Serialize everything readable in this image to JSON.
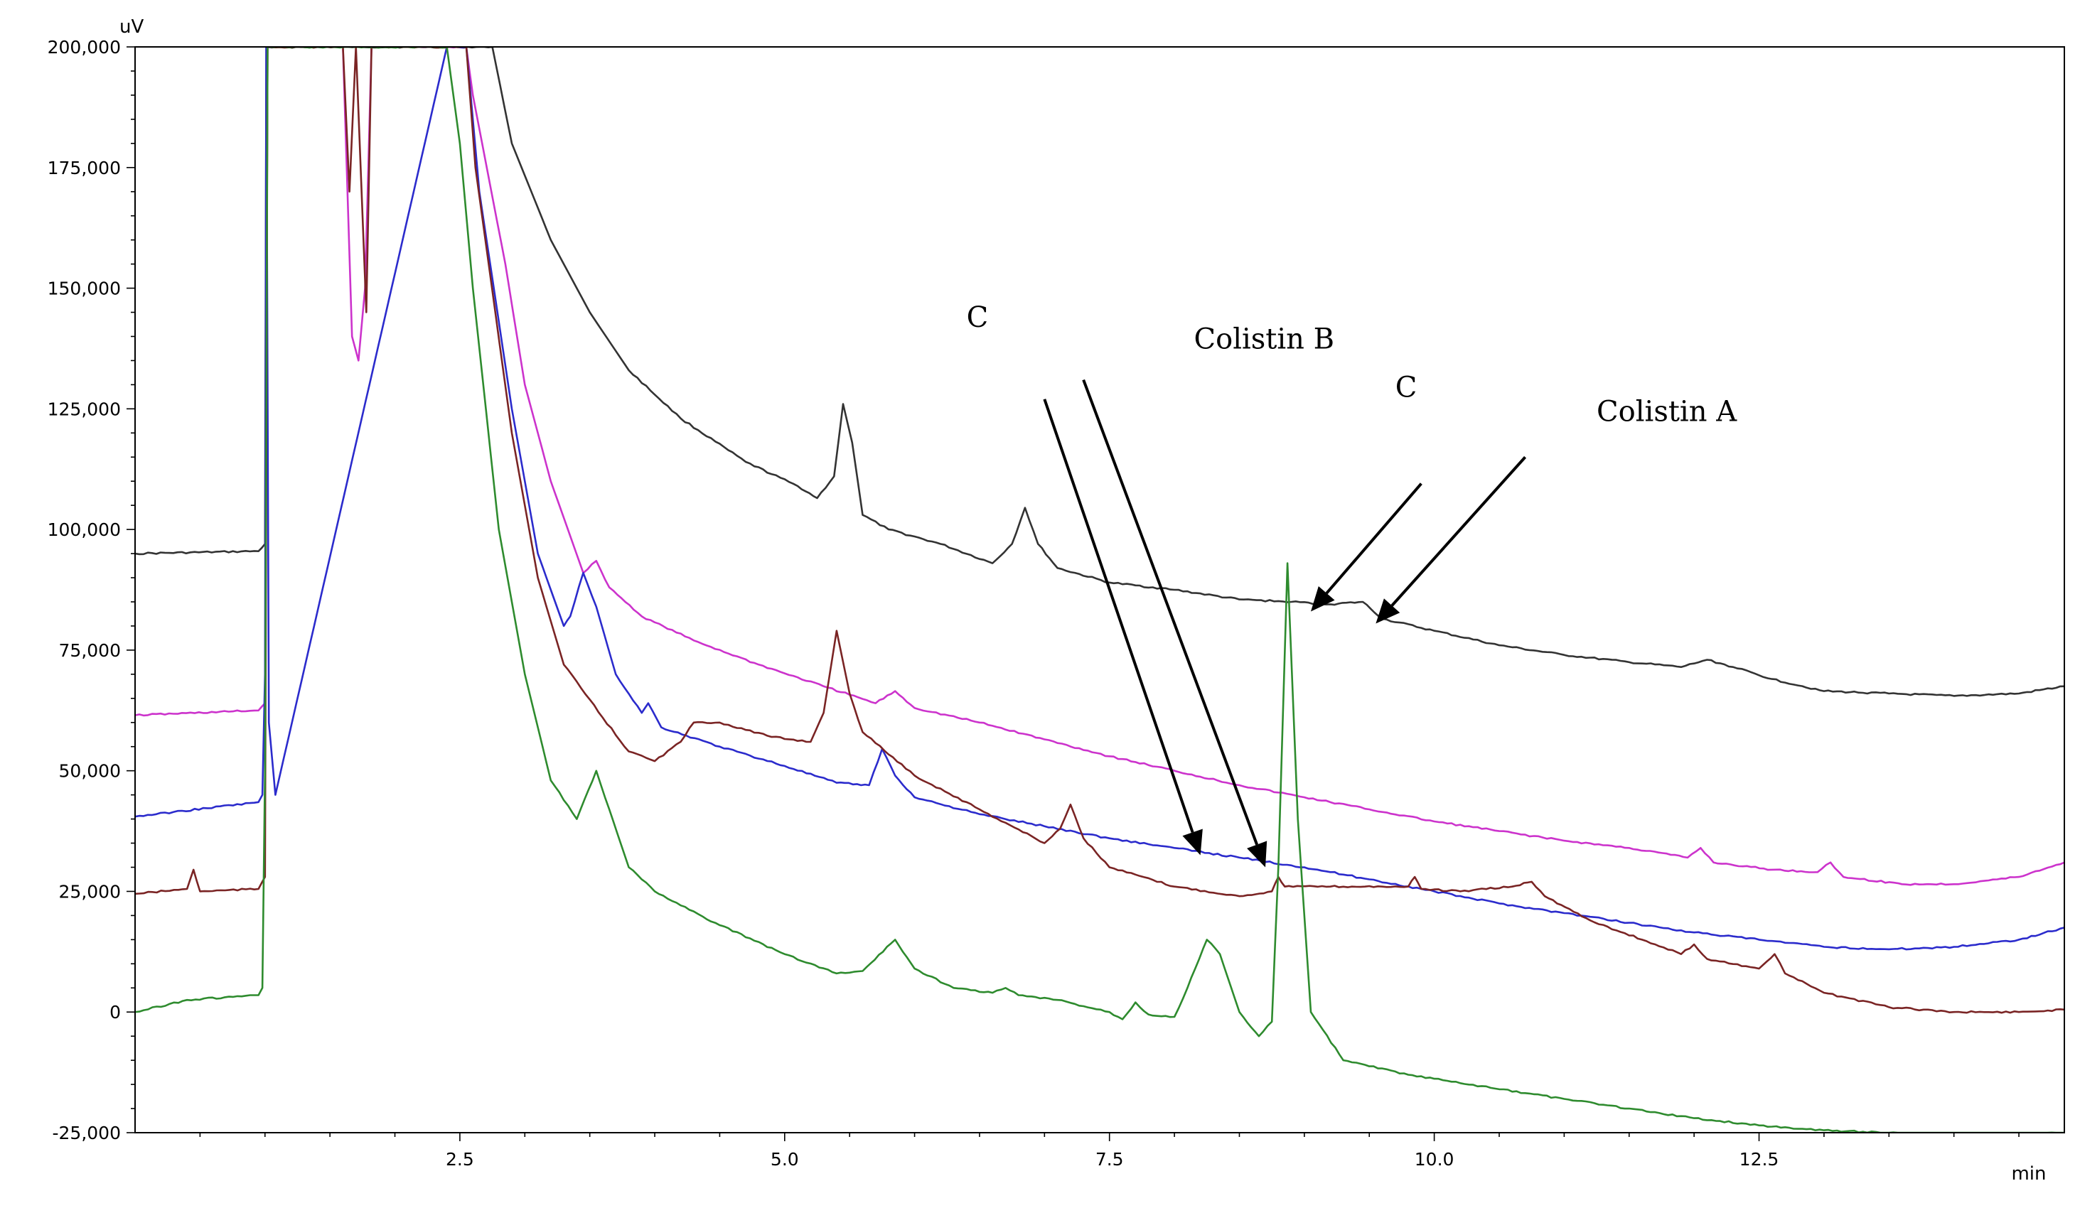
{
  "chart_data": {
    "type": "line",
    "x_unit": "min",
    "y_unit": "uV",
    "xlim": [
      0,
      14.85
    ],
    "ylim": [
      -25000,
      200000
    ],
    "x_ticks": [
      "2.5",
      "5.0",
      "7.5",
      "10.0",
      "12.5"
    ],
    "x_tick_values": [
      2.5,
      5.0,
      7.5,
      10.0,
      12.5
    ],
    "y_ticks": [
      "200,000",
      "175,000",
      "150,000",
      "125,000",
      "100,000",
      "75,000",
      "50,000",
      "25,000",
      "0",
      "-25,000"
    ],
    "y_tick_values": [
      200000,
      175000,
      150000,
      125000,
      100000,
      75000,
      50000,
      25000,
      0,
      -25000
    ],
    "grid": false,
    "legend": "none",
    "series": [
      {
        "color": "#333333",
        "points": [
          [
            0,
            95000
          ],
          [
            0.95,
            95500
          ],
          [
            1.0,
            97000
          ],
          [
            1.01,
            200000
          ],
          [
            2.5,
            200000
          ],
          [
            2.75,
            200000
          ],
          [
            2.9,
            180000
          ],
          [
            3.2,
            160000
          ],
          [
            3.5,
            145000
          ],
          [
            3.8,
            133000
          ],
          [
            4.2,
            123000
          ],
          [
            4.7,
            114000
          ],
          [
            5.1,
            109000
          ],
          [
            5.25,
            106500
          ],
          [
            5.38,
            111000
          ],
          [
            5.45,
            126000
          ],
          [
            5.52,
            118000
          ],
          [
            5.6,
            103000
          ],
          [
            5.8,
            100000
          ],
          [
            6.2,
            97000
          ],
          [
            6.6,
            93000
          ],
          [
            6.75,
            97000
          ],
          [
            6.85,
            104500
          ],
          [
            6.95,
            97000
          ],
          [
            7.1,
            92000
          ],
          [
            7.5,
            89000
          ],
          [
            8.0,
            87500
          ],
          [
            8.5,
            85500
          ],
          [
            8.9,
            85000
          ],
          [
            9.2,
            84500
          ],
          [
            9.45,
            85000
          ],
          [
            9.6,
            81500
          ],
          [
            10.0,
            79000
          ],
          [
            10.5,
            76000
          ],
          [
            11.0,
            74000
          ],
          [
            11.5,
            72500
          ],
          [
            11.9,
            71500
          ],
          [
            12.1,
            73000
          ],
          [
            12.3,
            71500
          ],
          [
            12.6,
            69000
          ],
          [
            13.0,
            66500
          ],
          [
            13.5,
            66000
          ],
          [
            14.0,
            65500
          ],
          [
            14.5,
            66000
          ],
          [
            14.85,
            67500
          ]
        ]
      },
      {
        "color": "#cc33cc",
        "points": [
          [
            0,
            61500
          ],
          [
            0.95,
            62500
          ],
          [
            1.0,
            64000
          ],
          [
            1.02,
            200000
          ],
          [
            1.6,
            200000
          ],
          [
            1.67,
            140000
          ],
          [
            1.72,
            135000
          ],
          [
            1.77,
            150000
          ],
          [
            1.82,
            200000
          ],
          [
            2.55,
            200000
          ],
          [
            2.6,
            190000
          ],
          [
            2.85,
            155000
          ],
          [
            3.0,
            130000
          ],
          [
            3.2,
            110000
          ],
          [
            3.45,
            91000
          ],
          [
            3.55,
            93500
          ],
          [
            3.65,
            88000
          ],
          [
            3.9,
            82000
          ],
          [
            4.3,
            77000
          ],
          [
            4.8,
            72000
          ],
          [
            5.3,
            67500
          ],
          [
            5.7,
            64000
          ],
          [
            5.85,
            66500
          ],
          [
            6.0,
            63000
          ],
          [
            6.5,
            60000
          ],
          [
            7.0,
            56500
          ],
          [
            7.5,
            53000
          ],
          [
            8.0,
            50000
          ],
          [
            8.5,
            47000
          ],
          [
            9.0,
            44500
          ],
          [
            9.5,
            42000
          ],
          [
            10.0,
            39500
          ],
          [
            10.5,
            37500
          ],
          [
            11.0,
            35500
          ],
          [
            11.5,
            34000
          ],
          [
            11.95,
            32000
          ],
          [
            12.05,
            34000
          ],
          [
            12.15,
            31000
          ],
          [
            12.6,
            29500
          ],
          [
            12.95,
            29000
          ],
          [
            13.05,
            31000
          ],
          [
            13.15,
            28000
          ],
          [
            13.6,
            26500
          ],
          [
            14.0,
            26500
          ],
          [
            14.5,
            28000
          ],
          [
            14.85,
            31000
          ]
        ]
      },
      {
        "color": "#2b2bcc",
        "points": [
          [
            0,
            40500
          ],
          [
            0.95,
            43500
          ],
          [
            0.98,
            45000
          ],
          [
            1.0,
            70000
          ],
          [
            1.01,
            200000
          ],
          [
            1.03,
            60000
          ],
          [
            1.08,
            45000
          ],
          [
            2.4,
            200000
          ],
          [
            2.55,
            200000
          ],
          [
            2.65,
            170000
          ],
          [
            2.9,
            125000
          ],
          [
            3.1,
            95000
          ],
          [
            3.3,
            80000
          ],
          [
            3.35,
            82000
          ],
          [
            3.45,
            91000
          ],
          [
            3.55,
            84000
          ],
          [
            3.7,
            70000
          ],
          [
            3.9,
            62000
          ],
          [
            3.95,
            64000
          ],
          [
            4.05,
            59000
          ],
          [
            4.5,
            55000
          ],
          [
            5.0,
            51000
          ],
          [
            5.4,
            47500
          ],
          [
            5.65,
            47000
          ],
          [
            5.75,
            54500
          ],
          [
            5.85,
            49000
          ],
          [
            6.0,
            44500
          ],
          [
            6.5,
            41000
          ],
          [
            7.0,
            38500
          ],
          [
            7.5,
            36000
          ],
          [
            8.0,
            34000
          ],
          [
            8.5,
            32000
          ],
          [
            9.0,
            30000
          ],
          [
            9.5,
            27500
          ],
          [
            10.0,
            25000
          ],
          [
            10.5,
            22500
          ],
          [
            11.0,
            20500
          ],
          [
            11.5,
            18500
          ],
          [
            12.0,
            16500
          ],
          [
            12.5,
            15000
          ],
          [
            13.0,
            13500
          ],
          [
            13.5,
            13000
          ],
          [
            14.0,
            13500
          ],
          [
            14.5,
            15000
          ],
          [
            14.85,
            17500
          ]
        ]
      },
      {
        "color": "#7a2424",
        "points": [
          [
            0,
            24500
          ],
          [
            0.4,
            25500
          ],
          [
            0.45,
            29500
          ],
          [
            0.5,
            25000
          ],
          [
            0.95,
            25500
          ],
          [
            1.0,
            28000
          ],
          [
            1.02,
            200000
          ],
          [
            1.6,
            200000
          ],
          [
            1.65,
            170000
          ],
          [
            1.7,
            200000
          ],
          [
            1.78,
            145000
          ],
          [
            1.82,
            200000
          ],
          [
            2.55,
            200000
          ],
          [
            2.62,
            175000
          ],
          [
            2.9,
            120000
          ],
          [
            3.1,
            90000
          ],
          [
            3.3,
            72000
          ],
          [
            3.6,
            61000
          ],
          [
            3.8,
            54000
          ],
          [
            4.0,
            52000
          ],
          [
            4.2,
            56000
          ],
          [
            4.3,
            60000
          ],
          [
            4.5,
            60000
          ],
          [
            4.9,
            57000
          ],
          [
            5.2,
            56000
          ],
          [
            5.3,
            62000
          ],
          [
            5.4,
            79000
          ],
          [
            5.5,
            66000
          ],
          [
            5.6,
            58000
          ],
          [
            6.0,
            49000
          ],
          [
            6.5,
            42000
          ],
          [
            7.0,
            35000
          ],
          [
            7.12,
            38000
          ],
          [
            7.2,
            43000
          ],
          [
            7.3,
            36000
          ],
          [
            7.5,
            30000
          ],
          [
            8.0,
            26000
          ],
          [
            8.5,
            24000
          ],
          [
            8.75,
            25000
          ],
          [
            8.8,
            28000
          ],
          [
            8.85,
            26000
          ],
          [
            9.2,
            26000
          ],
          [
            9.6,
            26000
          ],
          [
            9.8,
            26000
          ],
          [
            9.85,
            28000
          ],
          [
            9.9,
            25500
          ],
          [
            10.2,
            25000
          ],
          [
            10.6,
            26000
          ],
          [
            10.75,
            27000
          ],
          [
            10.85,
            24000
          ],
          [
            11.2,
            19000
          ],
          [
            11.6,
            15000
          ],
          [
            11.9,
            12000
          ],
          [
            12.0,
            14000
          ],
          [
            12.1,
            11000
          ],
          [
            12.5,
            9000
          ],
          [
            12.62,
            12000
          ],
          [
            12.7,
            8000
          ],
          [
            13.0,
            4000
          ],
          [
            13.5,
            1000
          ],
          [
            14.0,
            0
          ],
          [
            14.5,
            0
          ],
          [
            14.85,
            500
          ]
        ]
      },
      {
        "color": "#2e8b2e",
        "points": [
          [
            0,
            0
          ],
          [
            0.4,
            2500
          ],
          [
            0.95,
            3500
          ],
          [
            0.98,
            5000
          ],
          [
            1.0,
            50000
          ],
          [
            1.02,
            200000
          ],
          [
            2.4,
            200000
          ],
          [
            2.5,
            180000
          ],
          [
            2.6,
            150000
          ],
          [
            2.8,
            100000
          ],
          [
            3.0,
            70000
          ],
          [
            3.2,
            48000
          ],
          [
            3.4,
            40000
          ],
          [
            3.55,
            50000
          ],
          [
            3.65,
            42000
          ],
          [
            3.8,
            30000
          ],
          [
            4.0,
            25000
          ],
          [
            4.5,
            18000
          ],
          [
            5.0,
            12000
          ],
          [
            5.4,
            8000
          ],
          [
            5.6,
            8500
          ],
          [
            5.85,
            15000
          ],
          [
            6.0,
            9000
          ],
          [
            6.3,
            5000
          ],
          [
            6.6,
            4000
          ],
          [
            6.7,
            5000
          ],
          [
            6.8,
            3500
          ],
          [
            7.1,
            2500
          ],
          [
            7.5,
            0
          ],
          [
            7.6,
            -1500
          ],
          [
            7.7,
            2000
          ],
          [
            7.8,
            -500
          ],
          [
            8.0,
            -1000
          ],
          [
            8.1,
            5000
          ],
          [
            8.25,
            15000
          ],
          [
            8.35,
            12000
          ],
          [
            8.5,
            0
          ],
          [
            8.65,
            -5000
          ],
          [
            8.75,
            -2000
          ],
          [
            8.8,
            30000
          ],
          [
            8.87,
            93000
          ],
          [
            8.95,
            40000
          ],
          [
            9.05,
            0
          ],
          [
            9.3,
            -10000
          ],
          [
            9.8,
            -13000
          ],
          [
            10.5,
            -16000
          ],
          [
            11.0,
            -18000
          ],
          [
            11.5,
            -20000
          ],
          [
            12.0,
            -22000
          ],
          [
            12.5,
            -23500
          ],
          [
            13.0,
            -24500
          ],
          [
            13.5,
            -25000
          ],
          [
            14.0,
            -25500
          ],
          [
            14.85,
            -25000
          ]
        ]
      }
    ],
    "annotations": [
      {
        "text": "C",
        "x": 6.4,
        "y": 142000
      },
      {
        "text": "Colistin B",
        "x": 8.15,
        "y": 137500
      },
      {
        "text": "C",
        "x": 9.7,
        "y": 127500
      },
      {
        "text": "Colistin A",
        "x": 11.25,
        "y": 122500
      }
    ],
    "arrows": [
      {
        "label": "Colistin B",
        "from": [
          7.0,
          127000
        ],
        "to": [
          8.2,
          32500
        ]
      },
      {
        "label": "Colistin B",
        "from": [
          7.3,
          131000
        ],
        "to": [
          8.7,
          30000
        ]
      },
      {
        "label": "C",
        "from": [
          9.9,
          109500
        ],
        "to": [
          9.05,
          83000
        ]
      },
      {
        "label": "Colistin A",
        "from": [
          10.7,
          115000
        ],
        "to": [
          9.55,
          80500
        ]
      }
    ]
  }
}
